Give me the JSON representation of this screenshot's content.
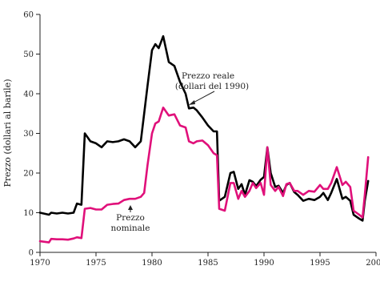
{
  "chart_data": {
    "type": "line",
    "title": "",
    "xlabel": "",
    "ylabel": "Prezzo (dollari al barile)",
    "xlim": [
      1970,
      2000
    ],
    "ylim": [
      0,
      60
    ],
    "xticks": [
      "1970",
      "1975",
      "1980",
      "1985",
      "1990",
      "1995",
      "2000"
    ],
    "yticks": [
      "0",
      "10",
      "20",
      "30",
      "40",
      "50",
      "60"
    ],
    "grid": false,
    "legend": "none",
    "series": [
      {
        "name": "Prezzo reale (dollari del 1990)",
        "color": "#000000",
        "x": [
          1970,
          1970.8,
          1971,
          1971.5,
          1972,
          1972.5,
          1973,
          1973.3,
          1973.7,
          1974,
          1974.5,
          1975,
          1975.5,
          1976,
          1976.5,
          1977,
          1977.5,
          1978,
          1978.5,
          1979,
          1979.3,
          1979.6,
          1980,
          1980.3,
          1980.6,
          1981,
          1981.5,
          1982,
          1982.5,
          1983,
          1983.3,
          1983.7,
          1984,
          1984.5,
          1985,
          1985.5,
          1985.8,
          1986,
          1986.5,
          1987,
          1987.3,
          1987.7,
          1988,
          1988.3,
          1988.7,
          1989,
          1989.3,
          1989.7,
          1990,
          1990.3,
          1990.6,
          1991,
          1991.3,
          1991.7,
          1992,
          1992.3,
          1992.7,
          1993,
          1993.5,
          1994,
          1994.5,
          1995,
          1995.3,
          1995.7,
          1996,
          1996.5,
          1997,
          1997.3,
          1997.7,
          1998,
          1998.5,
          1998.8,
          1999,
          1999.3
        ],
        "y": [
          10,
          9.5,
          10,
          9.8,
          10,
          9.8,
          10,
          12.3,
          12,
          30,
          28,
          27.5,
          26.5,
          28,
          27.8,
          28,
          28.5,
          28,
          26.5,
          28,
          35,
          42,
          51,
          52.5,
          51.5,
          54.5,
          48,
          47,
          43,
          40,
          36.3,
          36.5,
          35.8,
          34,
          32,
          30.5,
          30.5,
          13,
          14,
          20,
          20.3,
          16,
          17.2,
          14.5,
          18.2,
          17.8,
          16.7,
          18.3,
          19,
          26.5,
          20,
          16.5,
          16.8,
          15,
          17,
          17.5,
          15.2,
          14.5,
          13,
          13.5,
          13.2,
          14,
          15,
          13.2,
          15,
          18.5,
          13.5,
          14,
          13,
          9.5,
          8.5,
          8,
          13,
          18
        ]
      },
      {
        "name": "Prezzo nominale",
        "color": "#e0107a",
        "x": [
          1970,
          1970.8,
          1971,
          1971.5,
          1972,
          1972.5,
          1973,
          1973.3,
          1973.7,
          1974,
          1974.5,
          1975,
          1975.5,
          1976,
          1976.5,
          1977,
          1977.5,
          1978,
          1978.5,
          1979,
          1979.3,
          1979.6,
          1980,
          1980.3,
          1980.6,
          1981,
          1981.5,
          1982,
          1982.5,
          1983,
          1983.3,
          1983.7,
          1984,
          1984.5,
          1985,
          1985.5,
          1985.8,
          1986,
          1986.5,
          1987,
          1987.3,
          1987.7,
          1988,
          1988.3,
          1988.7,
          1989,
          1989.3,
          1989.7,
          1990,
          1990.3,
          1990.6,
          1991,
          1991.3,
          1991.7,
          1992,
          1992.3,
          1992.7,
          1993,
          1993.5,
          1994,
          1994.5,
          1995,
          1995.3,
          1995.7,
          1996,
          1996.5,
          1997,
          1997.3,
          1997.7,
          1998,
          1998.5,
          1998.8,
          1999,
          1999.3
        ],
        "y": [
          2.8,
          2.5,
          3.4,
          3.3,
          3.3,
          3.2,
          3.5,
          3.8,
          3.6,
          11,
          11.2,
          10.8,
          10.8,
          12,
          12.2,
          12.3,
          13.2,
          13.5,
          13.5,
          14,
          15,
          22,
          30,
          32.5,
          33,
          36.5,
          34.5,
          34.8,
          32,
          31.5,
          28,
          27.5,
          28,
          28.2,
          27,
          25,
          24.5,
          11,
          10.5,
          17.5,
          17.5,
          13.5,
          15.5,
          14,
          15.5,
          17.5,
          16.2,
          17.5,
          14.5,
          26.5,
          17,
          15.5,
          16.5,
          14.2,
          17.2,
          17.5,
          15.5,
          15.5,
          14.5,
          15.5,
          15.3,
          17,
          16,
          16,
          17.5,
          21.5,
          17,
          17.8,
          16.5,
          10.5,
          9.5,
          8.8,
          14.5,
          24
        ]
      }
    ],
    "annotations": [
      {
        "lines": [
          "Prezzo reale",
          "(dollari del 1990)"
        ]
      },
      {
        "lines": [
          "Prezzo",
          "nominale"
        ]
      }
    ]
  }
}
